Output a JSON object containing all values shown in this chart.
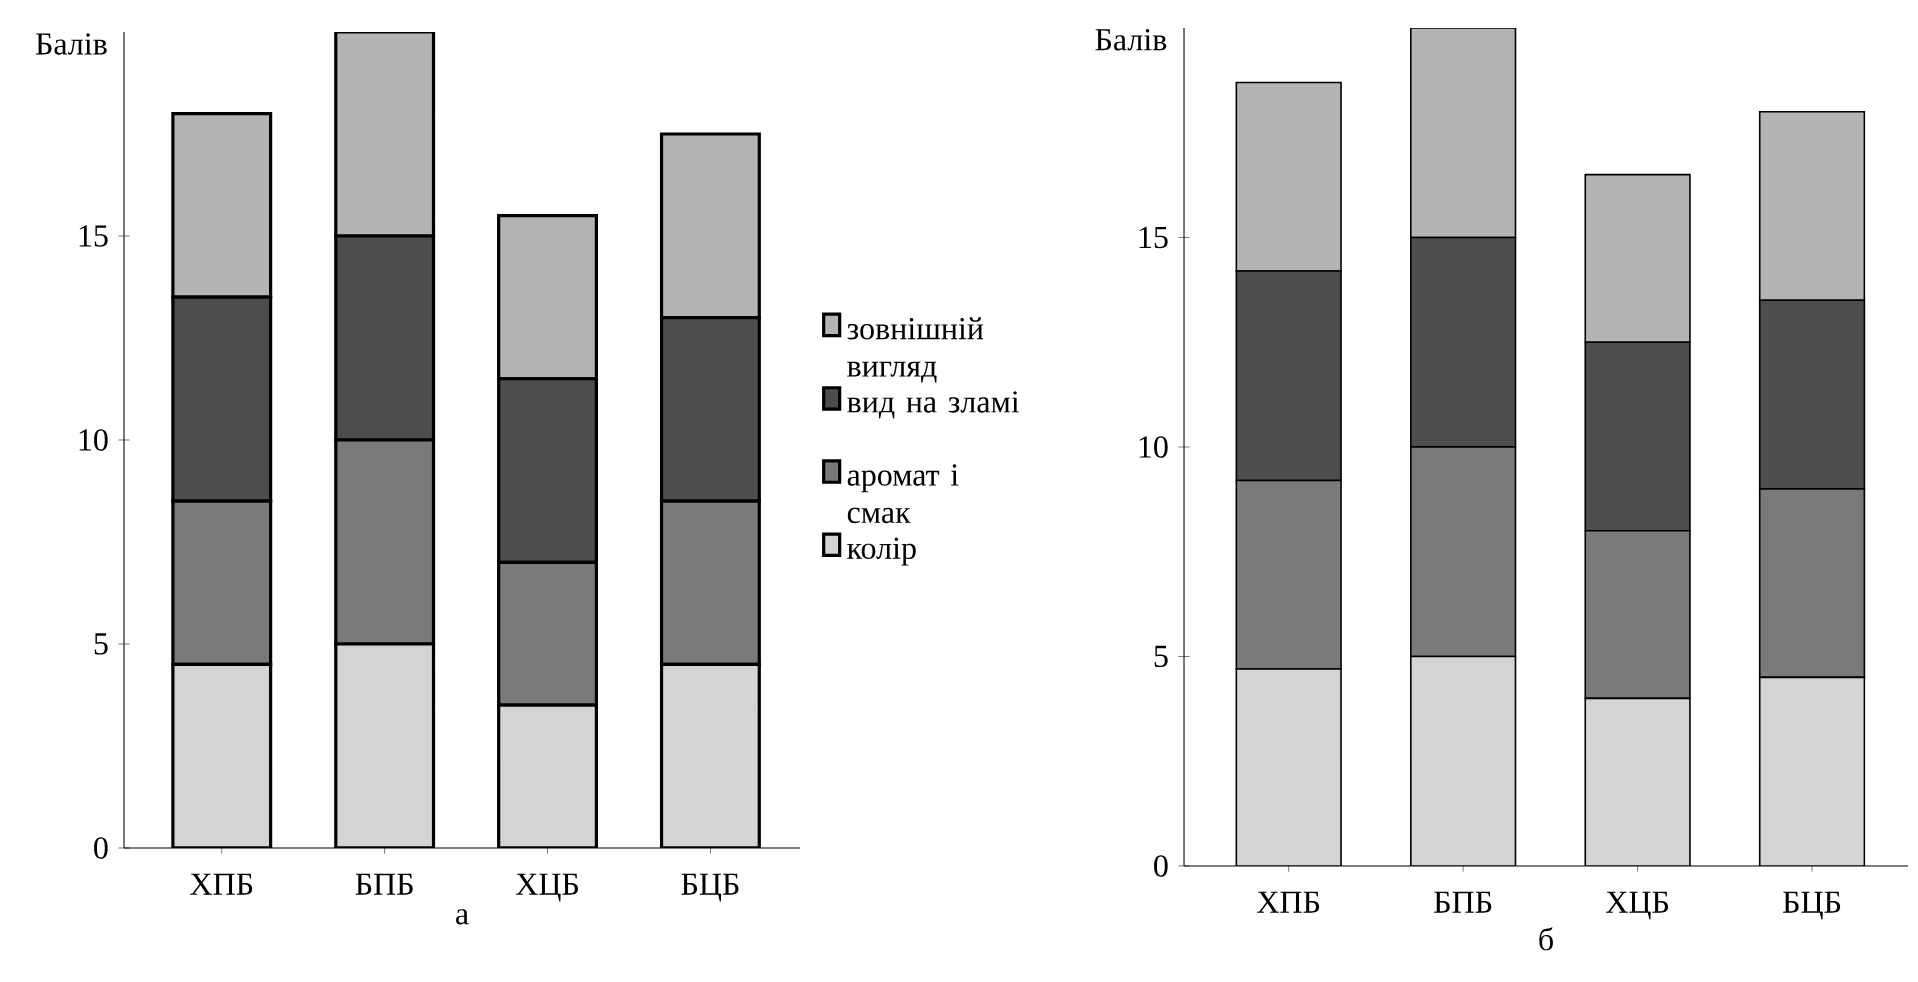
{
  "chart_data": [
    {
      "type": "bar",
      "stacked": true,
      "xlabel": "а",
      "ylabel": "Балів",
      "categories": [
        "ХПБ",
        "БПБ",
        "ХЦБ",
        "БЦБ"
      ],
      "ylim": [
        0,
        20
      ],
      "yticks": [
        0,
        5,
        10,
        15
      ],
      "legend": "right",
      "series": [
        {
          "name": "колір",
          "color": "#d4d4d4",
          "values": [
            4.5,
            5,
            3.5,
            4.5
          ]
        },
        {
          "name": "аромат і смак",
          "color": "#7a7a7a",
          "values": [
            4,
            5,
            3.5,
            4
          ]
        },
        {
          "name": "вид на зламі",
          "color": "#4d4d4d",
          "values": [
            5,
            5,
            4.5,
            4.5
          ]
        },
        {
          "name": "зовнішній вигляд",
          "color": "#b4b4b4",
          "values": [
            4.5,
            5,
            4,
            4.5
          ]
        }
      ]
    },
    {
      "type": "bar",
      "stacked": true,
      "xlabel": "б",
      "ylabel": "Балів",
      "categories": [
        "ХПБ",
        "БПБ",
        "ХЦБ",
        "БЦБ"
      ],
      "ylim": [
        0,
        20
      ],
      "yticks": [
        0,
        5,
        10,
        15
      ],
      "series": [
        {
          "color": "#d4d4d4",
          "values": [
            4.7,
            5,
            4,
            4.5
          ]
        },
        {
          "color": "#7a7a7a",
          "values": [
            4.5,
            5,
            4,
            4.5
          ]
        },
        {
          "color": "#4d4d4d",
          "values": [
            5,
            5,
            4.5,
            4.5
          ]
        },
        {
          "color": "#b4b4b4",
          "values": [
            4.5,
            5,
            4,
            4.5
          ]
        }
      ]
    }
  ]
}
